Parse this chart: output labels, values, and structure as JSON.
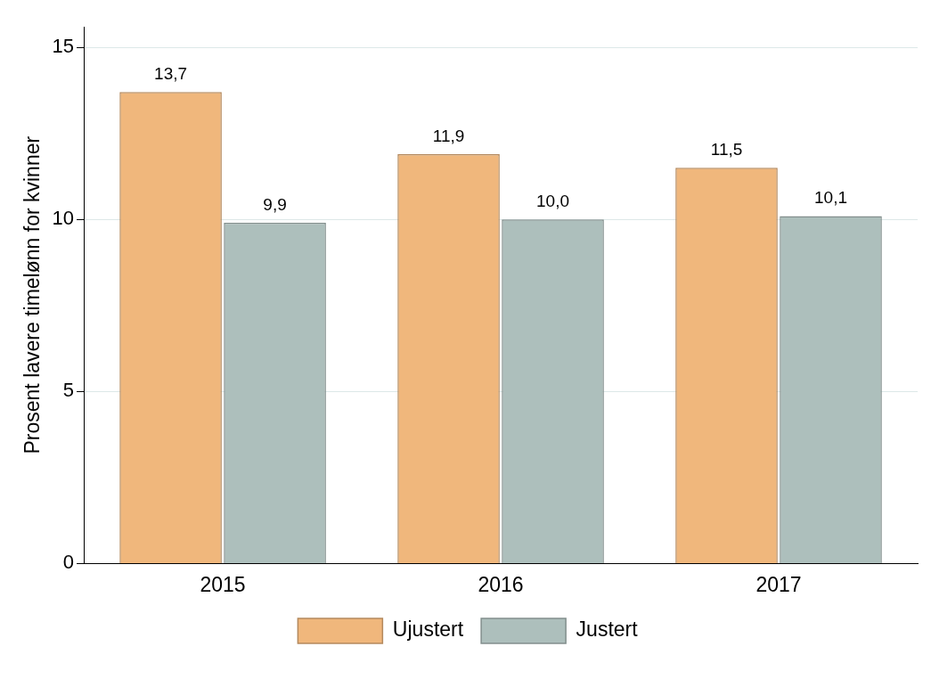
{
  "chart_data": {
    "type": "bar",
    "ylabel": "Prosent lavere timelønn for kvinner",
    "categories": [
      "2015",
      "2016",
      "2017"
    ],
    "series": [
      {
        "name": "Ujustert",
        "color": "#f0b77c",
        "values": [
          13.7,
          11.9,
          11.5
        ],
        "value_labels": [
          "13,7",
          "11,9",
          "11,5"
        ]
      },
      {
        "name": "Justert",
        "color": "#adbfbc",
        "values": [
          9.9,
          10.0,
          10.1
        ],
        "value_labels": [
          "9,9",
          "10,0",
          "10,1"
        ]
      }
    ],
    "ylim": [
      0,
      15.6
    ],
    "yticks": [
      0,
      5,
      10,
      15
    ],
    "grid": "y",
    "legend": "bottom"
  }
}
